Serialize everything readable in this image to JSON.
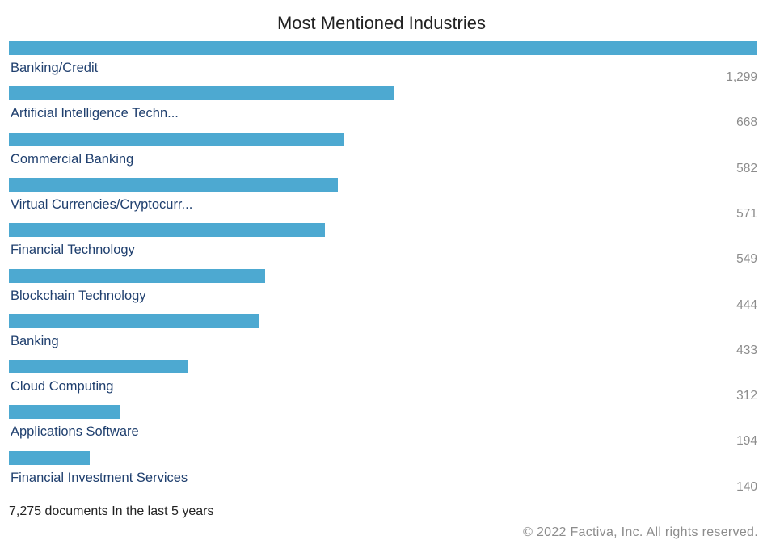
{
  "title": "Most Mentioned Industries",
  "bar_color": "#4da9d1",
  "chart_data": {
    "type": "bar",
    "orientation": "horizontal",
    "title": "Most Mentioned Industries",
    "categories": [
      "Banking/Credit",
      "Artificial Intelligence Techn...",
      "Commercial Banking",
      "Virtual Currencies/Cryptocurr...",
      "Financial Technology",
      "Blockchain Technology",
      "Banking",
      "Cloud Computing",
      "Applications Software",
      "Financial Investment Services"
    ],
    "value_labels": [
      "1,299",
      "668",
      "582",
      "571",
      "549",
      "444",
      "433",
      "312",
      "194",
      "140"
    ],
    "values": [
      1299,
      668,
      582,
      571,
      549,
      444,
      433,
      312,
      194,
      140
    ],
    "xlim": [
      0,
      1299
    ],
    "grid": false,
    "legend": "none"
  },
  "footer": {
    "documents": "7,275 documents In the last 5 years",
    "copyright": "© 2022 Factiva, Inc. All rights reserved."
  }
}
